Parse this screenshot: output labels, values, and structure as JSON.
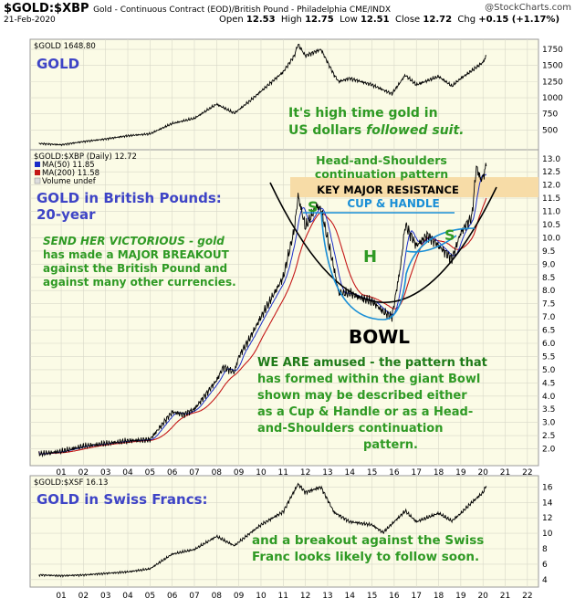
{
  "header": {
    "symbol": "$GOLD:$XBP",
    "description": "Gold - Continuous Contract (EOD)/British Pound - Philadelphia CME/INDX",
    "site": "@StockCharts.com",
    "date": "21-Feb-2020",
    "open_label": "Open",
    "open": "12.53",
    "high_label": "High",
    "high": "12.75",
    "low_label": "Low",
    "low": "12.51",
    "close_label": "Close",
    "close": "12.72",
    "chg_label": "Chg",
    "chg": "+0.15 (+1.17%)"
  },
  "colors": {
    "panel_bg": "#fbfbe6",
    "price_line": "#000000",
    "ma50": "#1b2ec8",
    "ma200": "#c41818",
    "annotation_blue": "#3e44c6",
    "annotation_green": "#2f9a24",
    "resistance_band": "#f7dca7",
    "cup_handle": "#1a8fd6"
  },
  "panels": {
    "gold_usd": {
      "legend": "$GOLD 1648.80",
      "title": "GOLD",
      "note1": "It's high time gold in",
      "note2a": "US dollars ",
      "note2b": "followed suit."
    },
    "gold_gbp": {
      "legend": "$GOLD:$XBP (Daily) 12.72",
      "ma50": "MA(50) 11.85",
      "ma200": "MA(200) 11.58",
      "volume": "Volume undef",
      "title1": "GOLD in British Pounds:",
      "title2": "20-year",
      "note_lines": [
        "SEND HER VICTORIOUS - gold",
        "has made a MAJOR BREAKOUT",
        "against the British Pound and",
        "against many other currencies."
      ],
      "hs1": "Head-and-Shoulders",
      "hs2": "continuation pattern",
      "resistance": "KEY MAJOR RESISTANCE",
      "cup": "CUP & HANDLE",
      "s_left": "S",
      "h": "H",
      "s_right": "S",
      "bowl": "BOWL",
      "comment": [
        "WE ARE amused - the pattern that",
        "has formed within the giant Bowl",
        "shown may be described either",
        "as a Cup & Handle or as a Head-",
        "and-Shoulders continuation",
        "pattern."
      ]
    },
    "gold_chf": {
      "legend": "$GOLD:$XSF 16.13",
      "title": "GOLD in Swiss Francs:",
      "note1": "and a breakout against the Swiss",
      "note2": "Franc looks likely to follow soon."
    }
  },
  "chart_data": [
    {
      "type": "line",
      "name": "$GOLD",
      "x": [
        2000.0,
        2001.0,
        2002.0,
        2003.0,
        2004.0,
        2005.0,
        2006.0,
        2007.0,
        2008.0,
        2008.8,
        2009.5,
        2010.0,
        2011.0,
        2011.5,
        2011.67,
        2012.0,
        2012.7,
        2013.3,
        2013.5,
        2014.0,
        2015.0,
        2015.9,
        2016.5,
        2017.0,
        2018.0,
        2018.6,
        2019.0,
        2019.5,
        2020.0,
        2020.15
      ],
      "y": [
        290,
        270,
        320,
        360,
        410,
        440,
        600,
        680,
        900,
        760,
        950,
        1100,
        1400,
        1650,
        1830,
        1650,
        1750,
        1350,
        1250,
        1300,
        1200,
        1060,
        1350,
        1200,
        1330,
        1180,
        1300,
        1420,
        1550,
        1648.8
      ],
      "yticks": [
        500,
        750,
        1000,
        1250,
        1500,
        1750
      ],
      "ylim": [
        250,
        1850
      ]
    },
    {
      "type": "line",
      "name": "$GOLD:$XBP",
      "x": [
        2000.0,
        2001.0,
        2002.0,
        2003.0,
        2004.0,
        2005.0,
        2006.0,
        2006.5,
        2007.0,
        2008.0,
        2008.3,
        2008.8,
        2009.0,
        2009.5,
        2010.0,
        2011.0,
        2011.5,
        2011.67,
        2012.0,
        2012.5,
        2012.7,
        2013.3,
        2013.5,
        2014.0,
        2014.5,
        2015.0,
        2015.5,
        2015.9,
        2016.3,
        2016.5,
        2017.0,
        2017.5,
        2018.0,
        2018.6,
        2019.0,
        2019.5,
        2019.7,
        2019.9,
        2020.0,
        2020.15
      ],
      "y": [
        1.8,
        1.9,
        2.1,
        2.2,
        2.3,
        2.35,
        3.4,
        3.3,
        3.5,
        4.6,
        5.1,
        4.9,
        5.5,
        6.2,
        7.0,
        8.5,
        10.3,
        11.6,
        10.4,
        11.2,
        11.1,
        8.8,
        7.9,
        7.9,
        7.7,
        7.6,
        7.2,
        7.0,
        9.0,
        10.5,
        9.7,
        10.1,
        9.7,
        9.2,
        10.2,
        10.8,
        12.7,
        12.2,
        12.3,
        12.72
      ],
      "ma50": 11.85,
      "ma200": 11.58,
      "yticks": [
        2.0,
        2.5,
        3.0,
        3.5,
        4.0,
        4.5,
        5.0,
        5.5,
        6.0,
        6.5,
        7.0,
        7.5,
        8.0,
        8.5,
        9.0,
        9.5,
        10.0,
        10.5,
        11.0,
        11.5,
        12.0,
        12.5,
        13.0
      ],
      "ylim": [
        1.5,
        13.2
      ]
    },
    {
      "type": "line",
      "name": "$GOLD:$XSF",
      "x": [
        2000.0,
        2001.0,
        2002.0,
        2003.0,
        2004.0,
        2005.0,
        2006.0,
        2007.0,
        2008.0,
        2008.8,
        2009.5,
        2010.0,
        2011.0,
        2011.67,
        2012.0,
        2012.7,
        2013.3,
        2014.0,
        2015.0,
        2015.5,
        2016.5,
        2017.0,
        2018.0,
        2018.6,
        2019.0,
        2019.5,
        2020.0,
        2020.15
      ],
      "y": [
        4.6,
        4.5,
        4.6,
        4.8,
        5.0,
        5.4,
        7.3,
        7.9,
        9.6,
        8.4,
        10.0,
        11.1,
        12.8,
        16.4,
        15.3,
        16.0,
        12.7,
        11.5,
        11.1,
        10.1,
        12.9,
        11.5,
        12.6,
        11.6,
        12.6,
        14.0,
        15.3,
        16.13
      ],
      "yticks": [
        4,
        6,
        8,
        10,
        12,
        14,
        16
      ],
      "ylim": [
        3.5,
        17.0
      ]
    }
  ],
  "x_axis": {
    "labels": [
      "01",
      "02",
      "03",
      "04",
      "05",
      "06",
      "07",
      "08",
      "09",
      "10",
      "11",
      "12",
      "13",
      "14",
      "15",
      "16",
      "17",
      "18",
      "19",
      "20",
      "21",
      "22"
    ]
  }
}
